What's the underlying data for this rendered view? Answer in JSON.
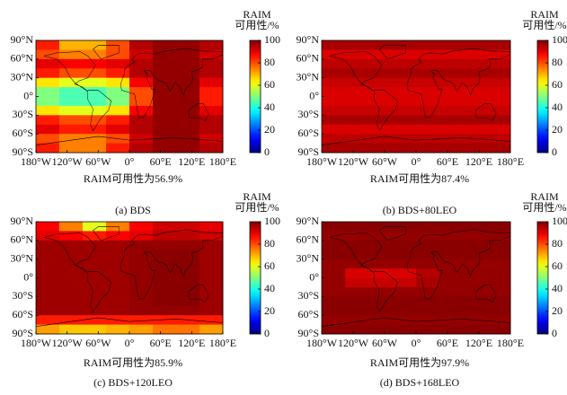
{
  "chart_data": [
    {
      "type": "heatmap",
      "caption": "(a) BDS",
      "subtitle": "RAIM可用性为56.9%",
      "colorbar_label": [
        "RAIM",
        "可用性/%"
      ],
      "colormap": "jet",
      "clim": [
        0,
        100
      ],
      "colorbar_ticks": [
        0,
        20,
        40,
        60,
        80,
        100
      ],
      "xlim": [
        -180,
        180
      ],
      "ylim": [
        -90,
        90
      ],
      "xticks": [
        {
          "value": -180,
          "label": "180°W"
        },
        {
          "value": -120,
          "label": "120°W"
        },
        {
          "value": -60,
          "label": "60°W"
        },
        {
          "value": 0,
          "label": "0°"
        },
        {
          "value": 60,
          "label": "60°E"
        },
        {
          "value": 120,
          "label": "120°E"
        },
        {
          "value": 180,
          "label": "180°E"
        }
      ],
      "yticks": [
        {
          "value": 90,
          "label": "90°N"
        },
        {
          "value": 60,
          "label": "60°N"
        },
        {
          "value": 30,
          "label": "30°N"
        },
        {
          "value": 0,
          "label": "0°"
        },
        {
          "value": -30,
          "label": "30°S"
        },
        {
          "value": -60,
          "label": "60°S"
        },
        {
          "value": -90,
          "label": "90°S"
        }
      ],
      "x_bins": [
        -180,
        -135,
        -90,
        -45,
        0,
        45,
        90,
        135,
        180
      ],
      "y_bins": [
        90,
        75,
        60,
        45,
        30,
        15,
        0,
        -15,
        -30,
        -45,
        -60,
        -75,
        -90
      ],
      "z": [
        [
          85,
          70,
          70,
          80,
          95,
          98,
          98,
          95
        ],
        [
          80,
          75,
          75,
          80,
          92,
          98,
          98,
          92
        ],
        [
          90,
          88,
          88,
          90,
          95,
          98,
          98,
          95
        ],
        [
          85,
          80,
          80,
          85,
          95,
          98,
          98,
          95
        ],
        [
          65,
          60,
          60,
          65,
          88,
          98,
          98,
          90
        ],
        [
          50,
          45,
          45,
          50,
          80,
          98,
          98,
          85
        ],
        [
          50,
          45,
          45,
          50,
          80,
          98,
          98,
          85
        ],
        [
          65,
          60,
          60,
          65,
          88,
          98,
          98,
          90
        ],
        [
          85,
          80,
          80,
          85,
          95,
          98,
          98,
          95
        ],
        [
          90,
          85,
          85,
          90,
          95,
          98,
          98,
          95
        ],
        [
          80,
          75,
          75,
          80,
          92,
          98,
          98,
          92
        ],
        [
          85,
          75,
          75,
          85,
          95,
          98,
          98,
          95
        ]
      ]
    },
    {
      "type": "heatmap",
      "caption": "(b) BDS+80LEO",
      "subtitle": "RAIM可用性为87.4%",
      "colorbar_label": [
        "RAIM",
        "可用性/%"
      ],
      "colormap": "jet",
      "clim": [
        0,
        100
      ],
      "colorbar_ticks": [
        0,
        20,
        40,
        60,
        80,
        100
      ],
      "xlim": [
        -180,
        180
      ],
      "ylim": [
        -90,
        90
      ],
      "xticks": [
        {
          "value": -180,
          "label": "180°W"
        },
        {
          "value": -120,
          "label": "120°W"
        },
        {
          "value": -60,
          "label": "60°W"
        },
        {
          "value": 0,
          "label": "0°"
        },
        {
          "value": 60,
          "label": "60°E"
        },
        {
          "value": 120,
          "label": "120°E"
        },
        {
          "value": 180,
          "label": "180°E"
        }
      ],
      "yticks": [
        {
          "value": 90,
          "label": "90°N"
        },
        {
          "value": 60,
          "label": "60°N"
        },
        {
          "value": 30,
          "label": "30°N"
        },
        {
          "value": 0,
          "label": "0°"
        },
        {
          "value": -30,
          "label": "30°S"
        },
        {
          "value": -60,
          "label": "60°S"
        },
        {
          "value": -90,
          "label": "90°S"
        }
      ],
      "x_bins": [
        -180,
        -135,
        -90,
        -45,
        0,
        45,
        90,
        135,
        180
      ],
      "y_bins": [
        90,
        75,
        60,
        45,
        30,
        15,
        0,
        -15,
        -30,
        -45,
        -60,
        -75,
        -90
      ],
      "z": [
        [
          96,
          96,
          96,
          96,
          96,
          96,
          96,
          96
        ],
        [
          91,
          91,
          91,
          91,
          91,
          91,
          91,
          91
        ],
        [
          94,
          94,
          94,
          94,
          94,
          94,
          94,
          94
        ],
        [
          96,
          96,
          96,
          96,
          96,
          96,
          96,
          96
        ],
        [
          93,
          93,
          93,
          93,
          93,
          93,
          93,
          93
        ],
        [
          91,
          91,
          91,
          91,
          91,
          91,
          91,
          91
        ],
        [
          91,
          91,
          91,
          91,
          91,
          91,
          91,
          91
        ],
        [
          93,
          93,
          93,
          93,
          93,
          93,
          93,
          93
        ],
        [
          96,
          96,
          96,
          96,
          96,
          96,
          96,
          96
        ],
        [
          91,
          91,
          91,
          91,
          91,
          91,
          91,
          91
        ],
        [
          94,
          94,
          94,
          94,
          94,
          94,
          94,
          94
        ],
        [
          96,
          96,
          96,
          96,
          96,
          96,
          96,
          96
        ]
      ]
    },
    {
      "type": "heatmap",
      "caption": "(c) BDS+120LEO",
      "subtitle": "RAIM可用性为85.9%",
      "colorbar_label": [
        "RAIM",
        "可用性/%"
      ],
      "colormap": "jet",
      "clim": [
        0,
        100
      ],
      "colorbar_ticks": [
        0,
        20,
        40,
        60,
        80,
        100
      ],
      "xlim": [
        -180,
        180
      ],
      "ylim": [
        -90,
        90
      ],
      "xticks": [
        {
          "value": -180,
          "label": "180°W"
        },
        {
          "value": -120,
          "label": "120°W"
        },
        {
          "value": -60,
          "label": "60°W"
        },
        {
          "value": 0,
          "label": "0°"
        },
        {
          "value": 60,
          "label": "60°E"
        },
        {
          "value": 120,
          "label": "120°E"
        },
        {
          "value": 180,
          "label": "180°E"
        }
      ],
      "yticks": [
        {
          "value": 90,
          "label": "90°N"
        },
        {
          "value": 60,
          "label": "60°N"
        },
        {
          "value": 30,
          "label": "30°N"
        },
        {
          "value": 0,
          "label": "0°"
        },
        {
          "value": -30,
          "label": "30°S"
        },
        {
          "value": -60,
          "label": "60°S"
        },
        {
          "value": -90,
          "label": "90°S"
        }
      ],
      "x_bins": [
        -180,
        -135,
        -90,
        -45,
        0,
        45,
        90,
        135,
        180
      ],
      "y_bins": [
        90,
        75,
        60,
        45,
        30,
        15,
        0,
        -15,
        -30,
        -45,
        -60,
        -75,
        -90
      ],
      "z": [
        [
          88,
          75,
          60,
          75,
          88,
          92,
          92,
          90
        ],
        [
          90,
          88,
          85,
          88,
          90,
          94,
          94,
          92
        ],
        [
          97,
          97,
          97,
          97,
          98,
          98,
          98,
          97
        ],
        [
          97,
          97,
          97,
          97,
          98,
          99,
          99,
          97
        ],
        [
          97,
          97,
          97,
          97,
          98,
          99,
          99,
          97
        ],
        [
          97,
          97,
          97,
          97,
          98,
          99,
          99,
          97
        ],
        [
          97,
          97,
          97,
          97,
          98,
          99,
          99,
          97
        ],
        [
          97,
          97,
          97,
          97,
          98,
          99,
          99,
          97
        ],
        [
          97,
          97,
          97,
          97,
          98,
          99,
          99,
          97
        ],
        [
          97,
          97,
          97,
          97,
          98,
          98,
          98,
          97
        ],
        [
          85,
          85,
          85,
          85,
          85,
          85,
          85,
          85
        ],
        [
          72,
          68,
          68,
          70,
          72,
          76,
          76,
          72
        ]
      ]
    },
    {
      "type": "heatmap",
      "caption": "(d) BDS+168LEO",
      "subtitle": "RAIM可用性为97.9%",
      "colorbar_label": [
        "RAIM",
        "可用性/%"
      ],
      "colormap": "jet",
      "clim": [
        0,
        100
      ],
      "colorbar_ticks": [
        0,
        20,
        40,
        60,
        80,
        100
      ],
      "xlim": [
        -180,
        180
      ],
      "ylim": [
        -90,
        90
      ],
      "xticks": [
        {
          "value": -180,
          "label": "180°W"
        },
        {
          "value": -120,
          "label": "120°W"
        },
        {
          "value": -60,
          "label": "60°W"
        },
        {
          "value": 0,
          "label": "0°"
        },
        {
          "value": 60,
          "label": "60°E"
        },
        {
          "value": 120,
          "label": "120°E"
        },
        {
          "value": 180,
          "label": "180°E"
        }
      ],
      "yticks": [
        {
          "value": 90,
          "label": "90°N"
        },
        {
          "value": 60,
          "label": "60°N"
        },
        {
          "value": 30,
          "label": "30°N"
        },
        {
          "value": 0,
          "label": "0°"
        },
        {
          "value": -30,
          "label": "30°S"
        },
        {
          "value": -60,
          "label": "60°S"
        },
        {
          "value": -90,
          "label": "90°S"
        }
      ],
      "x_bins": [
        -180,
        -135,
        -90,
        -45,
        0,
        45,
        90,
        135,
        180
      ],
      "y_bins": [
        90,
        75,
        60,
        45,
        30,
        15,
        0,
        -15,
        -30,
        -45,
        -60,
        -75,
        -90
      ],
      "z": [
        [
          99,
          99,
          99,
          99,
          99,
          99,
          99,
          99
        ],
        [
          98,
          98,
          98,
          98,
          98,
          98,
          98,
          98
        ],
        [
          99,
          99,
          99,
          99,
          99,
          99,
          99,
          99
        ],
        [
          99,
          99,
          99,
          99,
          99,
          99,
          99,
          99
        ],
        [
          98,
          98,
          98,
          98,
          98,
          98,
          98,
          98
        ],
        [
          98,
          91,
          91,
          91,
          95,
          98,
          98,
          98
        ],
        [
          98,
          93,
          93,
          93,
          96,
          98,
          98,
          98
        ],
        [
          98,
          98,
          98,
          98,
          98,
          98,
          98,
          98
        ],
        [
          99,
          99,
          99,
          99,
          99,
          99,
          99,
          99
        ],
        [
          99,
          99,
          99,
          99,
          99,
          99,
          99,
          99
        ],
        [
          98,
          98,
          98,
          98,
          98,
          98,
          98,
          98
        ],
        [
          99,
          99,
          99,
          99,
          99,
          99,
          99,
          99
        ]
      ]
    }
  ]
}
